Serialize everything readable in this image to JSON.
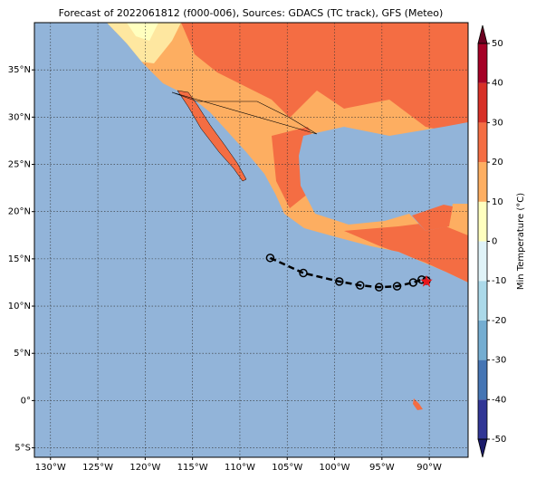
{
  "title": "Forecast of 2022061812 (f000-006), Sources: GDACS (TC track), GFS (Meteo)",
  "map": {
    "xlim": [
      -131.7,
      -85.9
    ],
    "ylim": [
      -6,
      40
    ],
    "xticks": [
      {
        "value": -130,
        "label": "130°W"
      },
      {
        "value": -125,
        "label": "125°W"
      },
      {
        "value": -120,
        "label": "120°W"
      },
      {
        "value": -115,
        "label": "115°W"
      },
      {
        "value": -110,
        "label": "110°W"
      },
      {
        "value": -105,
        "label": "105°W"
      },
      {
        "value": -100,
        "label": "100°W"
      },
      {
        "value": -95,
        "label": "95°W"
      },
      {
        "value": -90,
        "label": "90°W"
      }
    ],
    "yticks": [
      {
        "value": -5,
        "label": "5°S"
      },
      {
        "value": 0,
        "label": "0°"
      },
      {
        "value": 5,
        "label": "5°N"
      },
      {
        "value": 10,
        "label": "10°N"
      },
      {
        "value": 15,
        "label": "15°N"
      },
      {
        "value": 20,
        "label": "20°N"
      },
      {
        "value": 25,
        "label": "25°N"
      },
      {
        "value": 30,
        "label": "30°N"
      },
      {
        "value": 35,
        "label": "35°N"
      }
    ]
  },
  "track": {
    "lon": [
      -106.8,
      -103.3,
      -99.5,
      -97.3,
      -95.3,
      -93.4,
      -91.7,
      -90.8,
      -90.3
    ],
    "lat": [
      15.1,
      13.5,
      12.6,
      12.2,
      12.0,
      12.1,
      12.5,
      12.8,
      12.7
    ],
    "color": "#000"
  },
  "current_position": {
    "lon": -90.3,
    "lat": 12.6,
    "color": "#e8161b"
  },
  "colorbar": {
    "label": "Min Temperature (°C)",
    "levels": [
      -50,
      -40,
      -30,
      -20,
      -10,
      0,
      10,
      20,
      30,
      40,
      50
    ],
    "colors": [
      "#313695",
      "#4575b4",
      "#74add1",
      "#abd9e9",
      "#e0f3f8",
      "#ffffbf",
      "#fdae61",
      "#f46d43",
      "#d73027",
      "#a50026"
    ],
    "under_color": "#1c1c6b",
    "over_color": "#6b0020"
  }
}
